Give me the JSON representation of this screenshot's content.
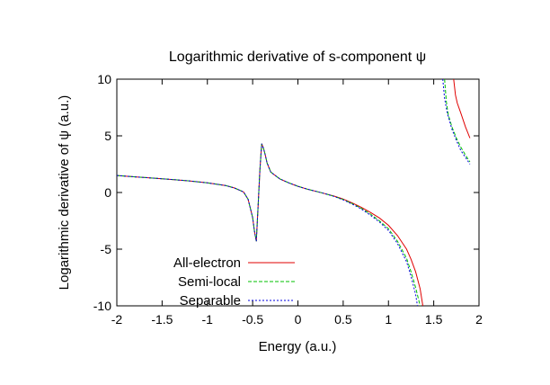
{
  "chart_data": {
    "type": "line",
    "title": "Logarithmic derivative of s-component ψ",
    "xlabel": "Energy (a.u.)",
    "ylabel": "Logarithmic derivative of ψ (a.u.)",
    "xlim": [
      -2,
      2
    ],
    "ylim": [
      -10,
      10
    ],
    "xticks": [
      -2,
      -1.5,
      -1,
      -0.5,
      0,
      0.5,
      1,
      1.5,
      2
    ],
    "yticks": [
      -10,
      -5,
      0,
      5,
      10
    ],
    "xtick_labels": [
      "-2",
      "-1.5",
      "-1",
      "-0.5",
      "0",
      "0.5",
      "1",
      "1.5",
      "2"
    ],
    "ytick_labels": [
      "-10",
      "-5",
      "0",
      "5",
      "10"
    ],
    "grid": false,
    "legend_position": "bottom-left",
    "series": [
      {
        "name": "All-electron",
        "color": "#e00000",
        "dash": "solid",
        "segments": [
          [
            [
              -2.0,
              1.5
            ],
            [
              -1.8,
              1.38
            ],
            [
              -1.6,
              1.27
            ],
            [
              -1.4,
              1.15
            ],
            [
              -1.2,
              1.02
            ],
            [
              -1.0,
              0.85
            ],
            [
              -0.8,
              0.62
            ],
            [
              -0.7,
              0.4
            ],
            [
              -0.6,
              0.05
            ],
            [
              -0.55,
              -0.6
            ],
            [
              -0.5,
              -2.2
            ],
            [
              -0.48,
              -3.4
            ],
            [
              -0.46,
              -4.3
            ],
            [
              -0.44,
              -1.2
            ],
            [
              -0.42,
              2.0
            ],
            [
              -0.4,
              4.3
            ],
            [
              -0.38,
              3.9
            ],
            [
              -0.36,
              3.3
            ],
            [
              -0.34,
              2.6
            ],
            [
              -0.3,
              1.8
            ],
            [
              -0.25,
              1.5
            ],
            [
              -0.2,
              1.2
            ],
            [
              -0.1,
              0.85
            ],
            [
              0.0,
              0.55
            ],
            [
              0.1,
              0.3
            ],
            [
              0.2,
              0.1
            ],
            [
              0.3,
              -0.1
            ],
            [
              0.4,
              -0.32
            ],
            [
              0.5,
              -0.58
            ],
            [
              0.6,
              -0.92
            ],
            [
              0.7,
              -1.3
            ],
            [
              0.8,
              -1.75
            ],
            [
              0.9,
              -2.25
            ],
            [
              1.0,
              -2.9
            ],
            [
              1.1,
              -3.8
            ],
            [
              1.2,
              -5.0
            ],
            [
              1.25,
              -5.9
            ],
            [
              1.3,
              -7.0
            ],
            [
              1.35,
              -8.5
            ],
            [
              1.38,
              -10.0
            ]
          ],
          [
            [
              1.72,
              10.0
            ],
            [
              1.74,
              8.6
            ],
            [
              1.76,
              7.9
            ],
            [
              1.8,
              7.0
            ],
            [
              1.85,
              5.8
            ],
            [
              1.9,
              4.8
            ]
          ]
        ]
      },
      {
        "name": "Semi-local",
        "color": "#00c000",
        "dash": "4 2",
        "segments": [
          [
            [
              -2.0,
              1.5
            ],
            [
              -1.8,
              1.38
            ],
            [
              -1.6,
              1.27
            ],
            [
              -1.4,
              1.15
            ],
            [
              -1.2,
              1.02
            ],
            [
              -1.0,
              0.85
            ],
            [
              -0.8,
              0.62
            ],
            [
              -0.7,
              0.4
            ],
            [
              -0.6,
              0.05
            ],
            [
              -0.55,
              -0.6
            ],
            [
              -0.5,
              -2.2
            ],
            [
              -0.48,
              -3.4
            ],
            [
              -0.46,
              -4.3
            ],
            [
              -0.44,
              -1.2
            ],
            [
              -0.42,
              2.0
            ],
            [
              -0.4,
              4.3
            ],
            [
              -0.38,
              3.9
            ],
            [
              -0.36,
              3.3
            ],
            [
              -0.34,
              2.6
            ],
            [
              -0.3,
              1.8
            ],
            [
              -0.25,
              1.5
            ],
            [
              -0.2,
              1.2
            ],
            [
              -0.1,
              0.85
            ],
            [
              0.0,
              0.55
            ],
            [
              0.1,
              0.3
            ],
            [
              0.2,
              0.1
            ],
            [
              0.3,
              -0.1
            ],
            [
              0.4,
              -0.34
            ],
            [
              0.5,
              -0.62
            ],
            [
              0.6,
              -0.98
            ],
            [
              0.7,
              -1.4
            ],
            [
              0.8,
              -1.9
            ],
            [
              0.9,
              -2.5
            ],
            [
              1.0,
              -3.2
            ],
            [
              1.1,
              -4.3
            ],
            [
              1.2,
              -5.8
            ],
            [
              1.25,
              -7.0
            ],
            [
              1.3,
              -8.4
            ],
            [
              1.35,
              -10.0
            ]
          ],
          [
            [
              1.62,
              10.0
            ],
            [
              1.64,
              8.0
            ],
            [
              1.66,
              6.9
            ],
            [
              1.7,
              5.8
            ],
            [
              1.75,
              4.8
            ],
            [
              1.8,
              4.0
            ],
            [
              1.85,
              3.3
            ],
            [
              1.9,
              2.7
            ]
          ]
        ]
      },
      {
        "name": "Separable",
        "color": "#0000e0",
        "dash": "2 2",
        "segments": [
          [
            [
              -2.0,
              1.5
            ],
            [
              -1.8,
              1.38
            ],
            [
              -1.6,
              1.27
            ],
            [
              -1.4,
              1.15
            ],
            [
              -1.2,
              1.02
            ],
            [
              -1.0,
              0.85
            ],
            [
              -0.8,
              0.62
            ],
            [
              -0.7,
              0.4
            ],
            [
              -0.6,
              0.05
            ],
            [
              -0.55,
              -0.6
            ],
            [
              -0.5,
              -2.2
            ],
            [
              -0.48,
              -3.4
            ],
            [
              -0.46,
              -4.3
            ],
            [
              -0.44,
              -1.2
            ],
            [
              -0.42,
              2.0
            ],
            [
              -0.4,
              4.3
            ],
            [
              -0.38,
              3.9
            ],
            [
              -0.36,
              3.3
            ],
            [
              -0.34,
              2.6
            ],
            [
              -0.3,
              1.8
            ],
            [
              -0.25,
              1.5
            ],
            [
              -0.2,
              1.2
            ],
            [
              -0.1,
              0.85
            ],
            [
              0.0,
              0.55
            ],
            [
              0.1,
              0.3
            ],
            [
              0.2,
              0.1
            ],
            [
              0.3,
              -0.1
            ],
            [
              0.4,
              -0.35
            ],
            [
              0.5,
              -0.65
            ],
            [
              0.6,
              -1.02
            ],
            [
              0.7,
              -1.45
            ],
            [
              0.8,
              -2.0
            ],
            [
              0.9,
              -2.6
            ],
            [
              1.0,
              -3.35
            ],
            [
              1.1,
              -4.5
            ],
            [
              1.2,
              -6.1
            ],
            [
              1.25,
              -7.4
            ],
            [
              1.3,
              -9.0
            ],
            [
              1.32,
              -10.0
            ]
          ],
          [
            [
              1.6,
              10.0
            ],
            [
              1.62,
              8.3
            ],
            [
              1.65,
              7.0
            ],
            [
              1.7,
              5.6
            ],
            [
              1.75,
              4.6
            ],
            [
              1.8,
              3.7
            ],
            [
              1.85,
              3.1
            ],
            [
              1.9,
              2.5
            ]
          ]
        ]
      }
    ]
  }
}
